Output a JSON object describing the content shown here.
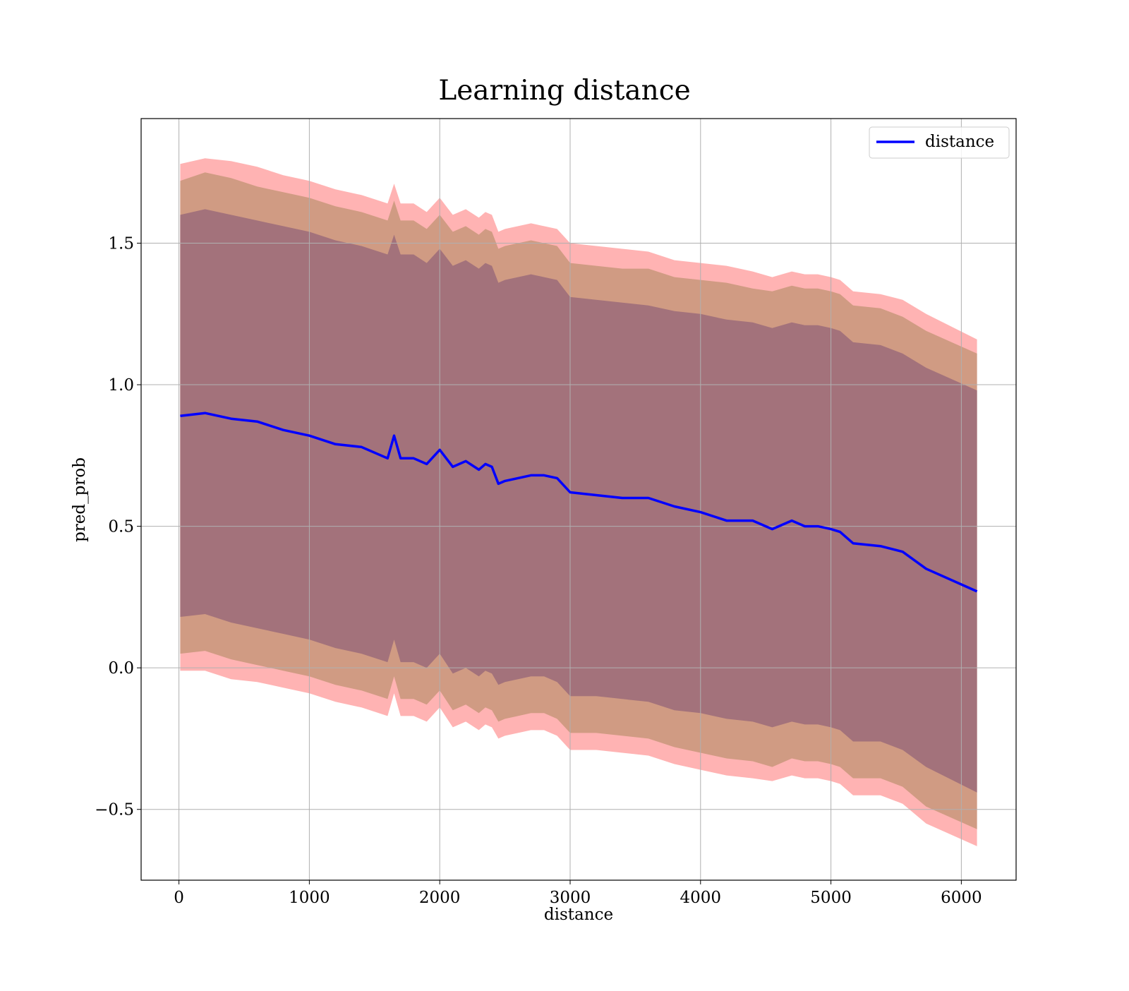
{
  "chart_data": {
    "type": "line",
    "title": "Learning distance",
    "xlabel": "distance",
    "ylabel": "pred_prob",
    "xlim": [
      -290,
      6420
    ],
    "ylim": [
      -0.75,
      1.94
    ],
    "x_ticks": [
      0,
      1000,
      2000,
      3000,
      4000,
      5000,
      6000
    ],
    "x_tick_labels": [
      "0",
      "1000",
      "2000",
      "3000",
      "4000",
      "5000",
      "6000"
    ],
    "y_ticks": [
      -0.5,
      0.0,
      0.5,
      1.0,
      1.5
    ],
    "y_tick_labels": [
      "−0.5",
      "0.0",
      "0.5",
      "1.0",
      "1.5"
    ],
    "grid": true,
    "legend": {
      "position": "top-right",
      "entries": [
        {
          "label": "distance",
          "color": "#0000ff"
        }
      ]
    },
    "colors": {
      "line": "#0000ff",
      "band_outer": "#ff9999",
      "band_mid": "#c8967a",
      "band_inner": "#a0707a"
    },
    "x": [
      10,
      200,
      400,
      600,
      800,
      1000,
      1200,
      1400,
      1600,
      1650,
      1700,
      1800,
      1900,
      2000,
      2100,
      2200,
      2300,
      2350,
      2400,
      2450,
      2500,
      2600,
      2700,
      2800,
      2900,
      3000,
      3200,
      3400,
      3600,
      3800,
      4000,
      4200,
      4400,
      4550,
      4700,
      4800,
      4900,
      5000,
      5070,
      5170,
      5380,
      5550,
      5730,
      6120
    ],
    "series": [
      {
        "name": "distance",
        "role": "mean",
        "values": [
          0.89,
          0.9,
          0.88,
          0.87,
          0.84,
          0.82,
          0.79,
          0.78,
          0.74,
          0.82,
          0.74,
          0.74,
          0.72,
          0.77,
          0.71,
          0.73,
          0.7,
          0.72,
          0.71,
          0.65,
          0.66,
          0.67,
          0.68,
          0.68,
          0.67,
          0.62,
          0.61,
          0.6,
          0.6,
          0.57,
          0.55,
          0.52,
          0.52,
          0.49,
          0.52,
          0.5,
          0.5,
          0.49,
          0.48,
          0.44,
          0.43,
          0.41,
          0.35,
          0.27
        ]
      },
      {
        "role": "band_outer",
        "upper": [
          1.78,
          1.8,
          1.79,
          1.77,
          1.74,
          1.72,
          1.69,
          1.67,
          1.64,
          1.71,
          1.64,
          1.64,
          1.61,
          1.66,
          1.6,
          1.62,
          1.59,
          1.61,
          1.6,
          1.54,
          1.55,
          1.56,
          1.57,
          1.56,
          1.55,
          1.5,
          1.49,
          1.48,
          1.47,
          1.44,
          1.43,
          1.42,
          1.4,
          1.38,
          1.4,
          1.39,
          1.39,
          1.38,
          1.37,
          1.33,
          1.32,
          1.3,
          1.25,
          1.16
        ],
        "lower": [
          -0.01,
          -0.01,
          -0.04,
          -0.05,
          -0.07,
          -0.09,
          -0.12,
          -0.14,
          -0.17,
          -0.09,
          -0.17,
          -0.17,
          -0.19,
          -0.14,
          -0.21,
          -0.19,
          -0.22,
          -0.2,
          -0.21,
          -0.25,
          -0.24,
          -0.23,
          -0.22,
          -0.22,
          -0.24,
          -0.29,
          -0.29,
          -0.3,
          -0.31,
          -0.34,
          -0.36,
          -0.38,
          -0.39,
          -0.4,
          -0.38,
          -0.39,
          -0.39,
          -0.4,
          -0.41,
          -0.45,
          -0.45,
          -0.48,
          -0.55,
          -0.63
        ]
      },
      {
        "role": "band_mid",
        "upper": [
          1.72,
          1.75,
          1.73,
          1.7,
          1.68,
          1.66,
          1.63,
          1.61,
          1.58,
          1.65,
          1.58,
          1.58,
          1.55,
          1.6,
          1.54,
          1.56,
          1.53,
          1.55,
          1.54,
          1.48,
          1.49,
          1.5,
          1.51,
          1.5,
          1.49,
          1.43,
          1.42,
          1.41,
          1.41,
          1.38,
          1.37,
          1.36,
          1.34,
          1.33,
          1.35,
          1.34,
          1.34,
          1.33,
          1.32,
          1.28,
          1.27,
          1.24,
          1.19,
          1.11
        ],
        "lower": [
          0.05,
          0.06,
          0.03,
          0.01,
          -0.01,
          -0.03,
          -0.06,
          -0.08,
          -0.11,
          -0.03,
          -0.11,
          -0.11,
          -0.13,
          -0.08,
          -0.15,
          -0.13,
          -0.16,
          -0.14,
          -0.15,
          -0.19,
          -0.18,
          -0.17,
          -0.16,
          -0.16,
          -0.18,
          -0.23,
          -0.23,
          -0.24,
          -0.25,
          -0.28,
          -0.3,
          -0.32,
          -0.33,
          -0.35,
          -0.32,
          -0.33,
          -0.33,
          -0.34,
          -0.35,
          -0.39,
          -0.39,
          -0.42,
          -0.49,
          -0.57
        ]
      },
      {
        "role": "band_inner",
        "upper": [
          1.6,
          1.62,
          1.6,
          1.58,
          1.56,
          1.54,
          1.51,
          1.49,
          1.46,
          1.53,
          1.46,
          1.46,
          1.43,
          1.48,
          1.42,
          1.44,
          1.41,
          1.43,
          1.42,
          1.36,
          1.37,
          1.38,
          1.39,
          1.38,
          1.37,
          1.31,
          1.3,
          1.29,
          1.28,
          1.26,
          1.25,
          1.23,
          1.22,
          1.2,
          1.22,
          1.21,
          1.21,
          1.2,
          1.19,
          1.15,
          1.14,
          1.11,
          1.06,
          0.98
        ],
        "lower": [
          0.18,
          0.19,
          0.16,
          0.14,
          0.12,
          0.1,
          0.07,
          0.05,
          0.02,
          0.1,
          0.02,
          0.02,
          0.0,
          0.05,
          -0.02,
          0.0,
          -0.03,
          -0.01,
          -0.02,
          -0.06,
          -0.05,
          -0.04,
          -0.03,
          -0.03,
          -0.05,
          -0.1,
          -0.1,
          -0.11,
          -0.12,
          -0.15,
          -0.16,
          -0.18,
          -0.19,
          -0.21,
          -0.19,
          -0.2,
          -0.2,
          -0.21,
          -0.22,
          -0.26,
          -0.26,
          -0.29,
          -0.35,
          -0.44
        ]
      }
    ]
  }
}
